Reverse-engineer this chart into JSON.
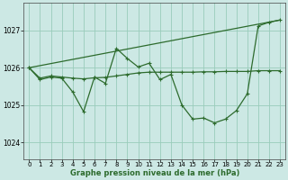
{
  "title": "Graphe pression niveau de la mer (hPa)",
  "bg_color": "#cce8e4",
  "grid_color": "#99ccbb",
  "line_color": "#2d6b2d",
  "x_ticks": [
    0,
    1,
    2,
    3,
    4,
    5,
    6,
    7,
    8,
    9,
    10,
    11,
    12,
    13,
    14,
    15,
    16,
    17,
    18,
    19,
    20,
    21,
    22,
    23
  ],
  "y_ticks": [
    1024,
    1025,
    1026,
    1027
  ],
  "ylim": [
    1023.55,
    1027.75
  ],
  "xlim": [
    -0.5,
    23.5
  ],
  "series1_x": [
    0,
    1,
    2,
    3,
    4,
    5,
    6,
    7,
    8,
    9,
    10,
    11,
    12,
    13,
    14,
    15,
    16,
    17,
    18,
    19,
    20,
    21,
    22,
    23
  ],
  "series1_y": [
    1026.0,
    1025.72,
    1025.78,
    1025.75,
    1025.72,
    1025.7,
    1025.73,
    1025.74,
    1025.78,
    1025.82,
    1025.86,
    1025.88,
    1025.88,
    1025.88,
    1025.88,
    1025.88,
    1025.89,
    1025.89,
    1025.9,
    1025.9,
    1025.9,
    1025.92,
    1025.92,
    1025.92
  ],
  "series2_x": [
    0,
    1,
    2,
    3,
    4,
    5,
    6,
    7,
    8,
    9,
    10,
    11,
    12,
    13,
    14,
    15,
    16,
    17,
    18,
    19,
    20,
    21,
    22,
    23
  ],
  "series2_y": [
    1026.0,
    1025.68,
    1025.75,
    1025.72,
    1025.35,
    1024.82,
    1025.75,
    1025.58,
    1026.52,
    1026.25,
    1026.02,
    1026.12,
    1025.68,
    1025.82,
    1025.0,
    1024.62,
    1024.65,
    1024.52,
    1024.62,
    1024.85,
    1025.3,
    1027.12,
    1027.22,
    1027.28
  ],
  "series3_x": [
    0,
    23
  ],
  "series3_y": [
    1026.0,
    1027.28
  ]
}
